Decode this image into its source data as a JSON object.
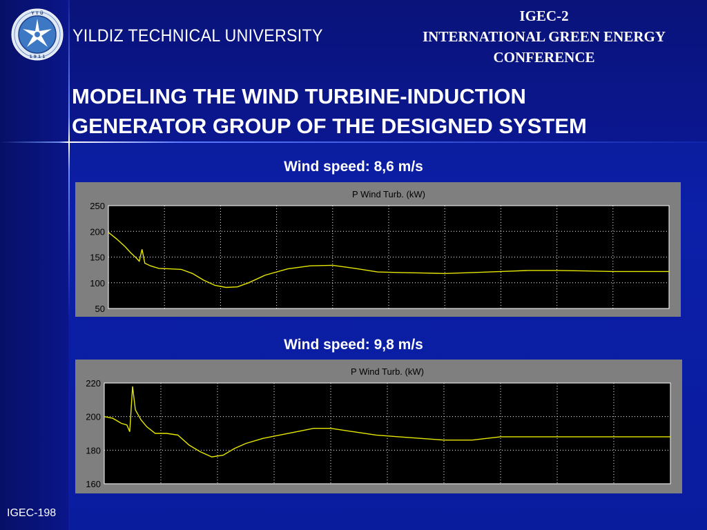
{
  "header": {
    "university": "YILDIZ TECHNICAL UNIVERSITY",
    "conference_lines": [
      "IGEC-2",
      "INTERNATIONAL GREEN ENERGY",
      "CONFERENCE"
    ],
    "title_lines": [
      "MODELING THE WIND TURBINE-INDUCTION",
      "GENERATOR GROUP OF THE DESIGNED SYSTEM"
    ]
  },
  "footer": {
    "label": "IGEC-198"
  },
  "colors": {
    "background": "#0b1fa8",
    "panel": "#7f7f7f",
    "plot_bg": "#000000",
    "trace": "#e8e800",
    "grid": "#ffffff"
  },
  "chart_data": [
    {
      "type": "line",
      "caption": "Wind speed: 8,6 m/s",
      "title": "P Wind Turb.  (kW)",
      "ylim": [
        50,
        250
      ],
      "yticks": [
        "250",
        "200",
        "150",
        "100",
        "50"
      ],
      "ytick_values": [
        250,
        200,
        150,
        100,
        50
      ],
      "xlim": [
        0,
        10
      ],
      "grid": true,
      "series": [
        {
          "x": [
            0,
            0.15,
            0.3,
            0.4,
            0.5,
            0.55,
            0.6,
            0.65,
            0.75,
            0.9,
            1.1,
            1.3,
            1.5,
            1.7,
            1.9,
            2.1,
            2.3,
            2.5,
            2.8,
            3.2,
            3.6,
            4.0,
            4.4,
            4.8,
            5.2,
            5.6,
            6.0,
            6.5,
            7.0,
            7.5,
            8.0,
            8.5,
            9.0,
            9.5,
            10.0
          ],
          "y": [
            198,
            185,
            170,
            158,
            148,
            142,
            165,
            138,
            133,
            128,
            127,
            126,
            118,
            105,
            95,
            91,
            92,
            100,
            115,
            127,
            133,
            134,
            128,
            121,
            120,
            119,
            118,
            120,
            122,
            124,
            124,
            123,
            122,
            122,
            122
          ]
        }
      ]
    },
    {
      "type": "line",
      "caption": "Wind speed: 9,8 m/s",
      "title": "P Wind Turb.  (kW)",
      "ylim": [
        160,
        220
      ],
      "yticks": [
        "220",
        "200",
        "180",
        "160"
      ],
      "ytick_values": [
        220,
        200,
        180,
        160
      ],
      "xlim": [
        0,
        10
      ],
      "grid": true,
      "series": [
        {
          "x": [
            0,
            0.15,
            0.3,
            0.4,
            0.45,
            0.5,
            0.55,
            0.6,
            0.65,
            0.75,
            0.9,
            1.1,
            1.3,
            1.5,
            1.7,
            1.9,
            2.1,
            2.3,
            2.5,
            2.8,
            3.1,
            3.4,
            3.7,
            4.0,
            4.4,
            4.8,
            5.2,
            5.6,
            6.0,
            6.5,
            7.0,
            7.5,
            8.0,
            8.5,
            9.0,
            9.5,
            10.0
          ],
          "y": [
            200,
            199,
            196,
            195,
            191,
            218,
            204,
            201,
            198,
            194,
            190,
            190,
            189,
            183,
            179,
            176,
            177,
            181,
            184,
            187,
            189,
            191,
            193,
            193,
            191,
            189,
            188,
            187,
            186,
            186,
            188,
            188,
            188,
            188,
            188,
            188,
            188
          ]
        }
      ]
    }
  ]
}
